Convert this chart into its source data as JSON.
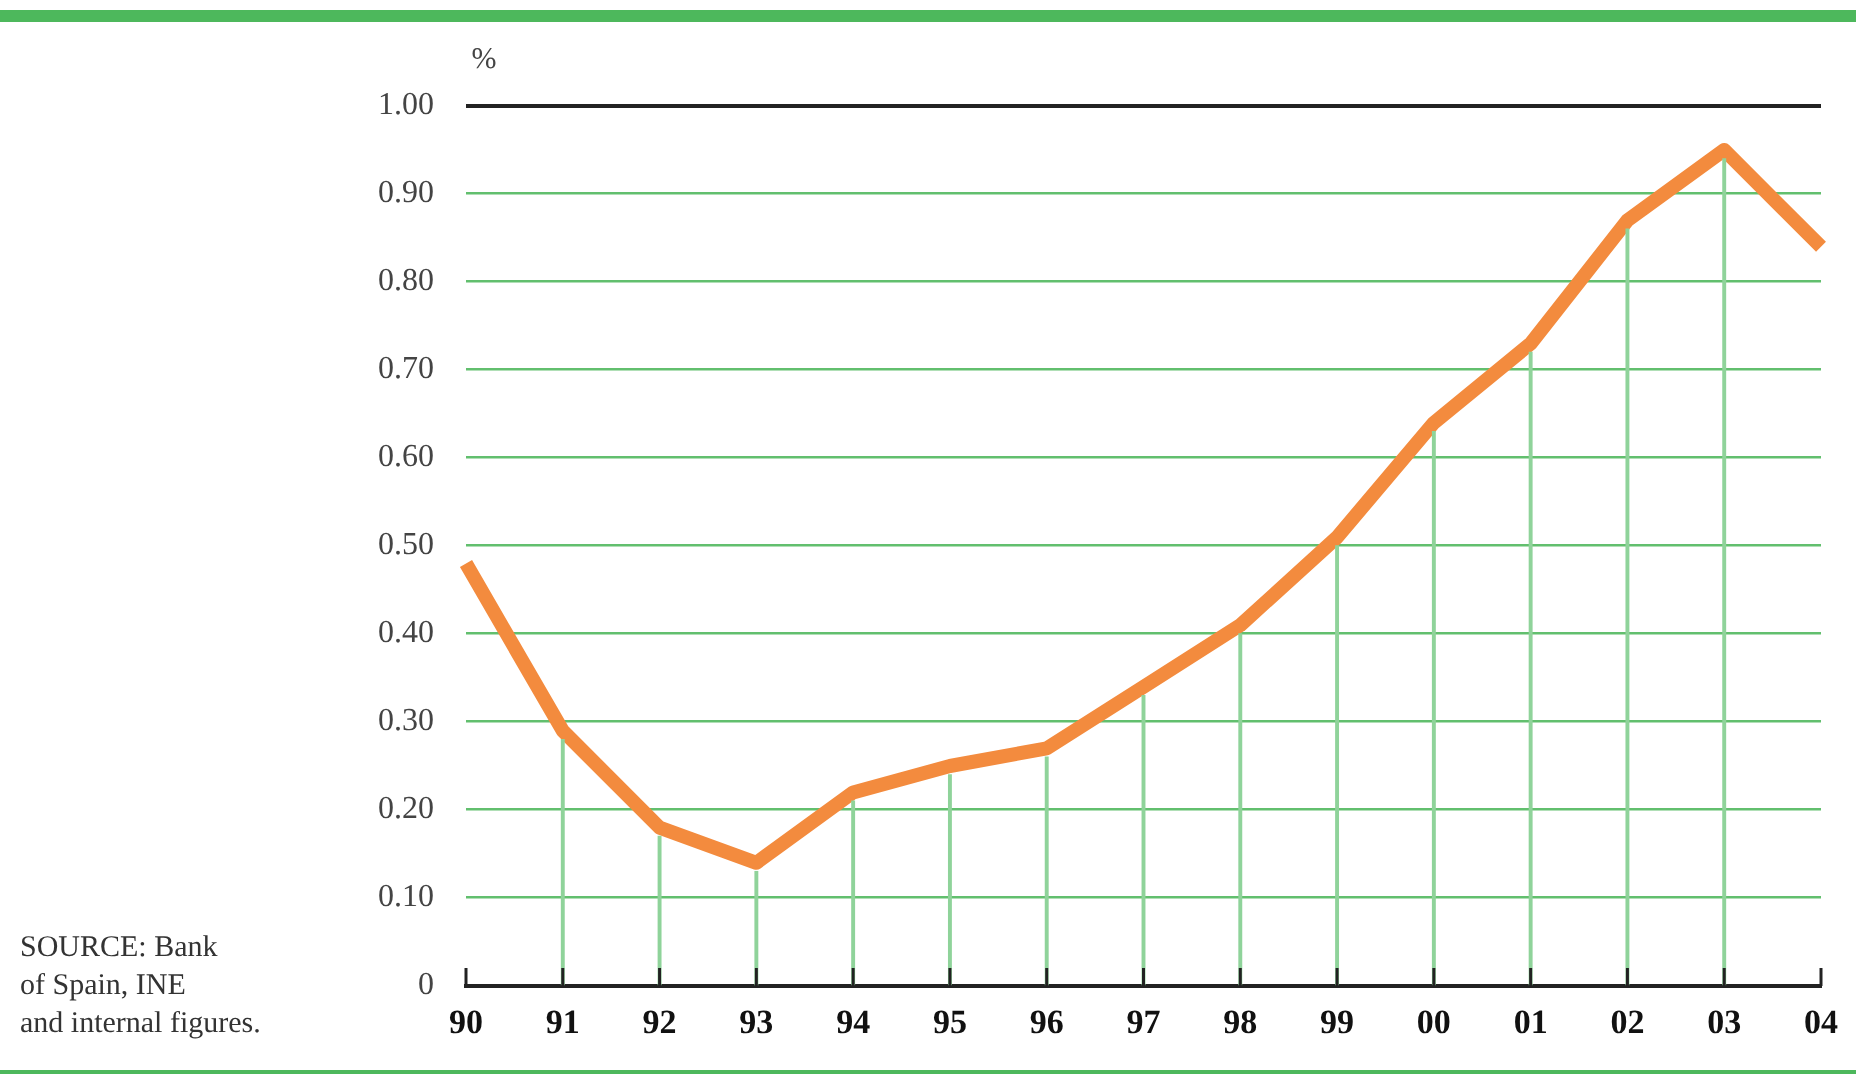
{
  "chart_data": {
    "type": "line",
    "ylabel": "%",
    "annotations": [
      "SOURCE: Bank\nof Spain, INE\nand internal figures."
    ],
    "categories": [
      "90",
      "91",
      "92",
      "93",
      "94",
      "95",
      "96",
      "97",
      "98",
      "99",
      "00",
      "01",
      "02",
      "03",
      "04"
    ],
    "series": [
      {
        "color": "#f38b3e",
        "values": [
          0.48,
          0.29,
          0.18,
          0.14,
          0.22,
          0.25,
          0.27,
          0.34,
          0.41,
          0.51,
          0.64,
          0.73,
          0.87,
          0.95,
          0.84
        ]
      },
      {
        "type": "bar",
        "color": "#8fd39a",
        "values": [
          null,
          0.28,
          0.17,
          0.13,
          0.21,
          0.24,
          0.26,
          0.33,
          0.4,
          0.5,
          0.63,
          0.72,
          0.86,
          0.94,
          null
        ]
      }
    ],
    "ylim": [
      0,
      1
    ],
    "yticks": [
      0,
      {
        "value": 0.1,
        "label": "0.10"
      },
      {
        "value": 0.2,
        "label": "0.20"
      },
      {
        "value": 0.3,
        "label": "0.30"
      },
      {
        "value": 0.4,
        "label": "0.40"
      },
      {
        "value": 0.5,
        "label": "0.50"
      },
      {
        "value": 0.6,
        "label": "0.60"
      },
      {
        "value": 0.7,
        "label": "0.70"
      },
      {
        "value": 0.8,
        "label": "0.80"
      },
      {
        "value": 0.9,
        "label": "0.90"
      },
      {
        "value": 1,
        "label": "1.00"
      }
    ],
    "grid": "y",
    "line_style": "solid"
  }
}
